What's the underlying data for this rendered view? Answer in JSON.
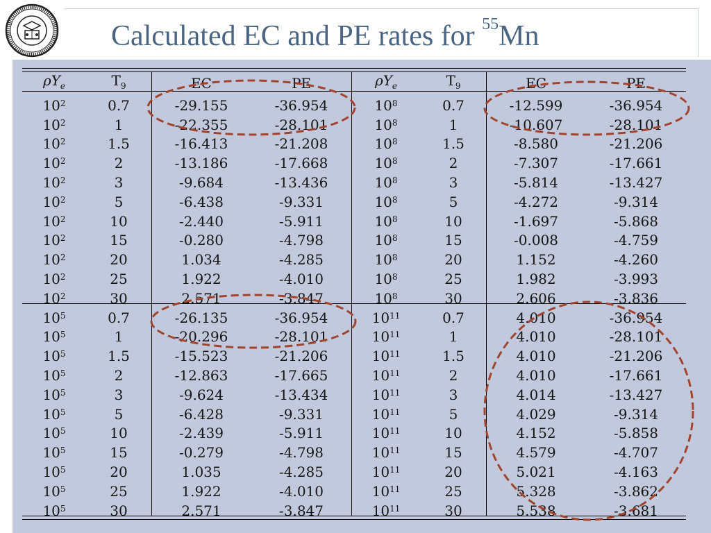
{
  "title": {
    "text": "Calculated EC and PE rates for ",
    "isotope_mass": "55",
    "element": "Mn"
  },
  "table": {
    "headers": {
      "rho_ye": "ρY",
      "rho_ye_sub": "e",
      "t9": "T",
      "t9_sub": "9",
      "ec": "EC",
      "pe": "PE"
    },
    "temperatures": [
      "0.7",
      "1",
      "1.5",
      "2",
      "3",
      "5",
      "10",
      "15",
      "20",
      "25",
      "30"
    ],
    "blocks": [
      {
        "left_density": {
          "base": "10",
          "exp": "2"
        },
        "right_density": {
          "base": "10",
          "exp": "8"
        },
        "left_ec": [
          "-29.155",
          "-22.355",
          "-16.413",
          "-13.186",
          "-9.684",
          "-6.438",
          "-2.440",
          "-0.280",
          "1.034",
          "1.922",
          "2.571"
        ],
        "left_pe": [
          "-36.954",
          "-28.101",
          "-21.208",
          "-17.668",
          "-13.436",
          "-9.331",
          "-5.911",
          "-4.798",
          "-4.285",
          "-4.010",
          "-3.847"
        ],
        "right_ec": [
          "-12.599",
          "-10.607",
          "-8.580",
          "-7.307",
          "-5.814",
          "-4.272",
          "-1.697",
          "-0.008",
          "1.152",
          "1.982",
          "2.606"
        ],
        "right_pe": [
          "-36.954",
          "-28.101",
          "-21.206",
          "-17.661",
          "-13.427",
          "-9.314",
          "-5.868",
          "-4.759",
          "-4.260",
          "-3.993",
          "-3.836"
        ]
      },
      {
        "left_density": {
          "base": "10",
          "exp": "5"
        },
        "right_density": {
          "base": "10",
          "exp": "11"
        },
        "left_ec": [
          "-26.135",
          "-20.296",
          "-15.523",
          "-12.863",
          "-9.624",
          "-6.428",
          "-2.439",
          "-0.279",
          "1.035",
          "1.922",
          "2.571"
        ],
        "left_pe": [
          "-36.954",
          "-28.101",
          "-21.206",
          "-17.665",
          "-13.434",
          "-9.331",
          "-5.911",
          "-4.798",
          "-4.285",
          "-4.010",
          "-3.847"
        ],
        "right_ec": [
          "4.010",
          "4.010",
          "4.010",
          "4.010",
          "4.014",
          "4.029",
          "4.152",
          "4.579",
          "5.021",
          "5.328",
          "5.538"
        ],
        "right_pe": [
          "-36.954",
          "-28.101",
          "-21.206",
          "-17.661",
          "-13.427",
          "-9.314",
          "-5.858",
          "-4.707",
          "-4.163",
          "-3.862",
          "-3.681"
        ]
      }
    ]
  },
  "colors": {
    "title": "#4a6582",
    "panel": "#c3c9dd",
    "annotation": "#a0442e"
  },
  "icons": {
    "logo": "university-seal-icon"
  }
}
